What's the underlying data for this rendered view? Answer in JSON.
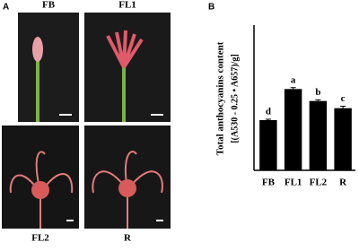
{
  "panels": {
    "a": "A",
    "b": "B"
  },
  "photos": [
    "FB",
    "FL1",
    "FL2",
    "R"
  ],
  "chart_data": {
    "type": "bar",
    "ylabel": [
      "Total anthocyanins content",
      "[(A530 - 0.25 • A657)/g]"
    ],
    "categories": [
      "FB",
      "FL1",
      "FL2",
      "R"
    ],
    "values": [
      2.1,
      3.4,
      2.9,
      2.6
    ],
    "errors": [
      0.04,
      0.06,
      0.05,
      0.08
    ],
    "value_labels": [
      "d",
      "a",
      "b",
      "c"
    ],
    "color": "#000000",
    "ylim": [
      0,
      6
    ]
  }
}
